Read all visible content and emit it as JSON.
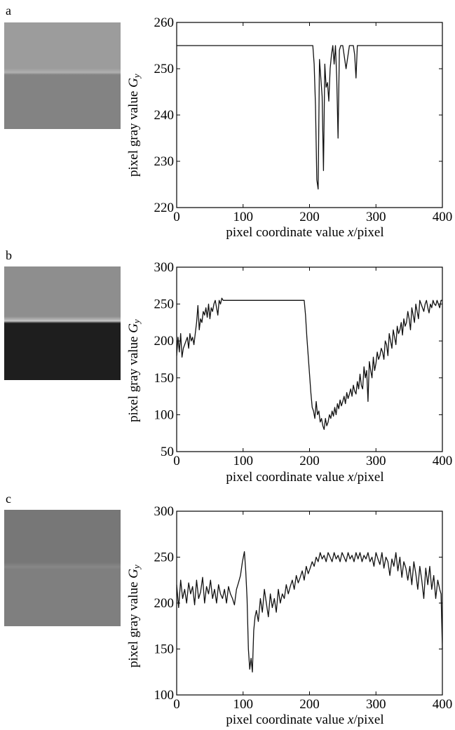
{
  "figure": {
    "panels": [
      {
        "label": "a",
        "thumb": {
          "top": "#9c9c9c",
          "band": "#b0b0b0",
          "bottom": "#838383",
          "split": 0.48
        }
      },
      {
        "label": "b",
        "thumb": {
          "top": "#8e8e8e",
          "band": "#c4c4c4",
          "bottom": "#1e1e1e",
          "split": 0.49
        }
      },
      {
        "label": "c",
        "thumb": {
          "top": "#777777",
          "band": "#878787",
          "bottom": "#7f7f7f",
          "split": 0.5
        }
      }
    ],
    "ylabel_text": "pixel gray value",
    "ylabel_var": "G",
    "ylabel_sub": "y",
    "xlabel_pre": "pixel coordinate value ",
    "xlabel_var": "x",
    "xlabel_post": "/pixel"
  },
  "chart_data": [
    {
      "type": "line",
      "xlabel": "pixel coordinate value x/pixel",
      "ylabel": "pixel gray value G_y",
      "xlim": [
        0,
        400
      ],
      "ylim": [
        220,
        260
      ],
      "xticks": [
        0,
        100,
        200,
        300,
        400
      ],
      "yticks": [
        220,
        230,
        240,
        250,
        260
      ],
      "series": [
        {
          "x": [
            0,
            205,
            207,
            209,
            211,
            213,
            215,
            217,
            219,
            221,
            223,
            225,
            227,
            229,
            231,
            233,
            235,
            237,
            239,
            241,
            243,
            245,
            247,
            250,
            255,
            260,
            264,
            266,
            268,
            270,
            272,
            274,
            400
          ],
          "y": [
            255,
            255,
            251,
            242,
            226,
            224,
            252,
            248,
            244,
            228,
            251,
            246,
            247,
            243,
            250,
            253,
            255,
            251,
            255,
            248,
            235,
            254,
            255,
            255,
            250,
            255,
            255,
            255,
            253,
            248,
            255,
            255,
            255
          ]
        }
      ]
    },
    {
      "type": "line",
      "xlabel": "pixel coordinate value x/pixel",
      "ylabel": "pixel gray value G_y",
      "xlim": [
        0,
        400
      ],
      "ylim": [
        50,
        300
      ],
      "xticks": [
        0,
        100,
        200,
        300,
        400
      ],
      "yticks": [
        50,
        100,
        150,
        200,
        250,
        300
      ],
      "series": [
        {
          "x": [
            0,
            2,
            4,
            6,
            8,
            10,
            12,
            14,
            16,
            18,
            20,
            22,
            24,
            26,
            28,
            30,
            32,
            34,
            36,
            38,
            40,
            42,
            44,
            46,
            48,
            50,
            52,
            54,
            56,
            58,
            60,
            62,
            64,
            66,
            68,
            70,
            100,
            150,
            192,
            194,
            196,
            198,
            200,
            202,
            204,
            206,
            208,
            210,
            212,
            214,
            216,
            218,
            220,
            222,
            224,
            226,
            228,
            230,
            232,
            234,
            236,
            238,
            240,
            242,
            244,
            246,
            248,
            250,
            252,
            254,
            256,
            258,
            260,
            262,
            264,
            266,
            268,
            270,
            272,
            274,
            276,
            278,
            280,
            282,
            284,
            286,
            288,
            290,
            292,
            294,
            296,
            298,
            300,
            302,
            304,
            306,
            308,
            310,
            312,
            314,
            316,
            318,
            320,
            322,
            324,
            326,
            328,
            330,
            332,
            334,
            336,
            338,
            340,
            342,
            344,
            346,
            348,
            350,
            352,
            354,
            356,
            358,
            360,
            362,
            364,
            366,
            368,
            370,
            372,
            374,
            376,
            378,
            380,
            382,
            384,
            386,
            388,
            390,
            392,
            394,
            396,
            398,
            400
          ],
          "y": [
            180,
            205,
            185,
            210,
            178,
            190,
            195,
            200,
            205,
            190,
            210,
            200,
            205,
            195,
            210,
            225,
            248,
            215,
            230,
            225,
            240,
            235,
            245,
            232,
            250,
            230,
            245,
            240,
            250,
            255,
            245,
            235,
            255,
            250,
            258,
            255,
            255,
            255,
            255,
            235,
            205,
            180,
            155,
            130,
            110,
            105,
            95,
            118,
            100,
            105,
            90,
            95,
            85,
            80,
            95,
            85,
            90,
            100,
            95,
            105,
            98,
            110,
            100,
            115,
            108,
            120,
            112,
            118,
            125,
            115,
            130,
            122,
            128,
            135,
            125,
            140,
            132,
            128,
            145,
            135,
            155,
            140,
            135,
            165,
            150,
            160,
            118,
            172,
            160,
            150,
            178,
            160,
            170,
            185,
            175,
            180,
            190,
            185,
            175,
            200,
            195,
            180,
            210,
            200,
            190,
            215,
            205,
            195,
            220,
            210,
            215,
            225,
            208,
            230,
            220,
            225,
            240,
            230,
            215,
            245,
            235,
            225,
            250,
            240,
            230,
            255,
            250,
            245,
            240,
            250,
            255,
            245,
            238,
            250,
            245,
            255,
            250,
            248,
            255,
            250,
            245,
            255,
            255
          ]
        }
      ]
    },
    {
      "type": "line",
      "xlabel": "pixel coordinate value x/pixel",
      "ylabel": "pixel gray value G_y",
      "xlim": [
        0,
        400
      ],
      "ylim": [
        100,
        300
      ],
      "xticks": [
        0,
        100,
        200,
        300,
        400
      ],
      "yticks": [
        100,
        150,
        200,
        250,
        300
      ],
      "series": [
        {
          "x": [
            0,
            3,
            6,
            9,
            12,
            15,
            18,
            21,
            24,
            27,
            30,
            33,
            36,
            39,
            42,
            45,
            48,
            51,
            54,
            57,
            60,
            63,
            66,
            69,
            72,
            75,
            78,
            81,
            84,
            87,
            90,
            93,
            96,
            99,
            102,
            104,
            106,
            108,
            110,
            112,
            114,
            116,
            118,
            120,
            123,
            126,
            129,
            132,
            135,
            138,
            141,
            144,
            147,
            150,
            153,
            156,
            159,
            162,
            165,
            168,
            171,
            174,
            177,
            180,
            183,
            186,
            189,
            192,
            195,
            198,
            201,
            204,
            207,
            210,
            213,
            216,
            219,
            222,
            225,
            228,
            231,
            234,
            237,
            240,
            243,
            246,
            249,
            252,
            255,
            258,
            261,
            264,
            267,
            270,
            273,
            276,
            279,
            282,
            285,
            288,
            291,
            294,
            297,
            300,
            303,
            306,
            309,
            312,
            315,
            318,
            321,
            324,
            327,
            330,
            333,
            336,
            339,
            342,
            345,
            348,
            351,
            354,
            357,
            360,
            363,
            366,
            369,
            372,
            375,
            378,
            381,
            384,
            387,
            390,
            393,
            396,
            398,
            400
          ],
          "y": [
            220,
            195,
            225,
            205,
            215,
            200,
            222,
            210,
            218,
            198,
            225,
            205,
            212,
            228,
            200,
            218,
            210,
            225,
            205,
            215,
            200,
            220,
            210,
            205,
            215,
            200,
            218,
            210,
            205,
            198,
            215,
            222,
            230,
            245,
            256,
            235,
            205,
            150,
            128,
            140,
            125,
            170,
            185,
            192,
            180,
            205,
            190,
            215,
            200,
            185,
            210,
            195,
            205,
            190,
            215,
            200,
            210,
            205,
            220,
            210,
            218,
            225,
            215,
            230,
            222,
            228,
            235,
            225,
            240,
            232,
            238,
            245,
            240,
            250,
            245,
            255,
            248,
            252,
            245,
            255,
            250,
            245,
            255,
            248,
            252,
            245,
            255,
            250,
            245,
            255,
            248,
            252,
            245,
            255,
            248,
            255,
            245,
            252,
            248,
            255,
            245,
            250,
            240,
            255,
            248,
            242,
            255,
            238,
            250,
            245,
            230,
            248,
            240,
            255,
            235,
            250,
            228,
            245,
            238,
            225,
            240,
            220,
            245,
            232,
            215,
            240,
            225,
            205,
            238,
            220,
            240,
            215,
            230,
            205,
            225,
            215,
            210,
            150
          ]
        }
      ]
    }
  ]
}
